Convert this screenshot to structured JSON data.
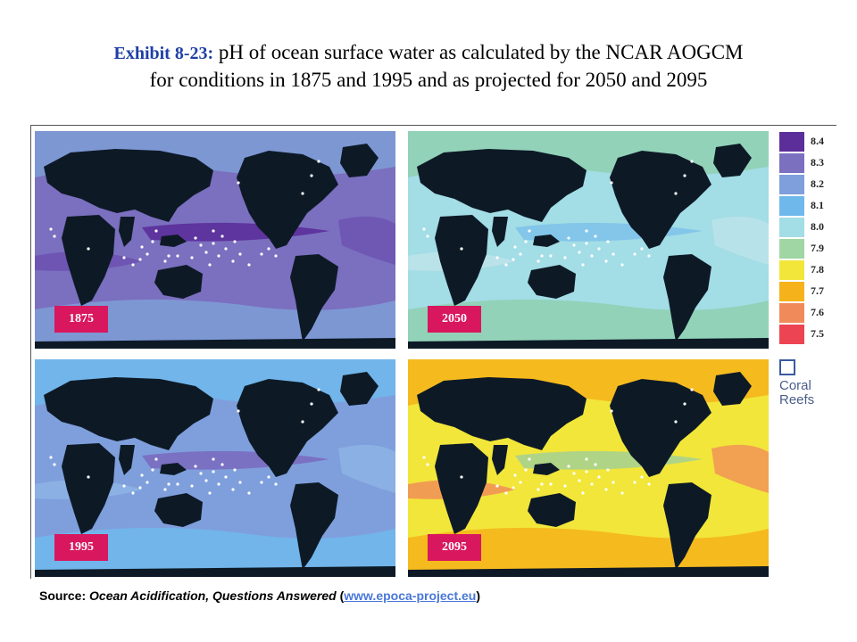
{
  "title": {
    "lead": "Exhibit 8-23:",
    "line1": "pH of ocean surface water as calculated by the NCAR AOGCM",
    "line2": "for conditions in 1875 and 1995 and as projected for 2050 and 2095"
  },
  "maps": [
    {
      "year": "1875",
      "base": "#7b6fbf",
      "band": "#7e9fd6",
      "accent": "#5b2e9a",
      "accent2": "#6b4fb0"
    },
    {
      "year": "2050",
      "base": "#a3dde6",
      "band": "#8fd0b0",
      "accent": "#7fc3ea",
      "accent2": "#bfe3ea"
    },
    {
      "year": "1995",
      "base": "#7f9fdc",
      "band": "#6fb8ec",
      "accent": "#7a6cc0",
      "accent2": "#8fb5e6"
    },
    {
      "year": "2095",
      "base": "#f2e63a",
      "band": "#f6b21a",
      "accent": "#a9d28f",
      "accent2": "#f08a5a"
    }
  ],
  "legend": [
    {
      "value": "8.4",
      "color": "#5b2e9a"
    },
    {
      "value": "8.3",
      "color": "#7b6fbf"
    },
    {
      "value": "8.2",
      "color": "#7f9fdc"
    },
    {
      "value": "8.1",
      "color": "#6fb8ec"
    },
    {
      "value": "8.0",
      "color": "#a3dde6"
    },
    {
      "value": "7.9",
      "color": "#9fd6a3"
    },
    {
      "value": "7.8",
      "color": "#f2e63a"
    },
    {
      "value": "7.7",
      "color": "#f6b21a"
    },
    {
      "value": "7.6",
      "color": "#f08a5a"
    },
    {
      "value": "7.5",
      "color": "#ec4452"
    }
  ],
  "coral": {
    "line1": "Coral",
    "line2": "Reefs"
  },
  "source": {
    "prefix": "Source: ",
    "work": "Ocean Acidification, Questions Answered",
    "open": " (",
    "url": "www.epoca-project.eu",
    "close": ")"
  },
  "colors": {
    "land": "#0d1a26",
    "badge": "#d8175e"
  }
}
